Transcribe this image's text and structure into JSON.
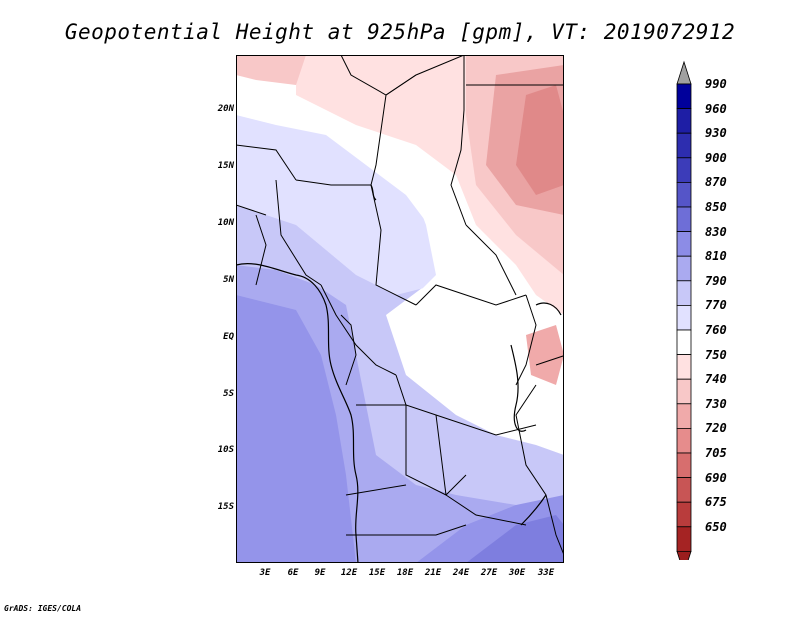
{
  "title": "Geopotential Height at 925hPa [gpm], VT: 2019072912",
  "credit": "GrADS: IGES/COLA",
  "lat_labels": [
    "20N",
    "15N",
    "10N",
    "5N",
    "EQ",
    "5S",
    "10S",
    "15S"
  ],
  "lon_labels": [
    "3E",
    "6E",
    "9E",
    "12E",
    "15E",
    "18E",
    "21E",
    "24E",
    "27E",
    "30E",
    "33E"
  ],
  "colorbar": {
    "levels": [
      "990",
      "960",
      "930",
      "900",
      "870",
      "850",
      "830",
      "810",
      "790",
      "770",
      "760",
      "750",
      "740",
      "730",
      "720",
      "705",
      "690",
      "675",
      "650"
    ],
    "colors": [
      "#00009b",
      "#1e1ea5",
      "#2d2daf",
      "#3c3cb9",
      "#5555c8",
      "#6e6ed7",
      "#8c8ce6",
      "#aaaaf0",
      "#c8c8f8",
      "#e1e1ff",
      "#ffffff",
      "#ffe1e1",
      "#f8c8c8",
      "#f0aaaa",
      "#e68c8c",
      "#d76e6e",
      "#c85555",
      "#b93c3c",
      "#a52323"
    ],
    "top_arrow_color": "#a0a0a0",
    "bottom_arrow_color": "#9b1e1e"
  }
}
